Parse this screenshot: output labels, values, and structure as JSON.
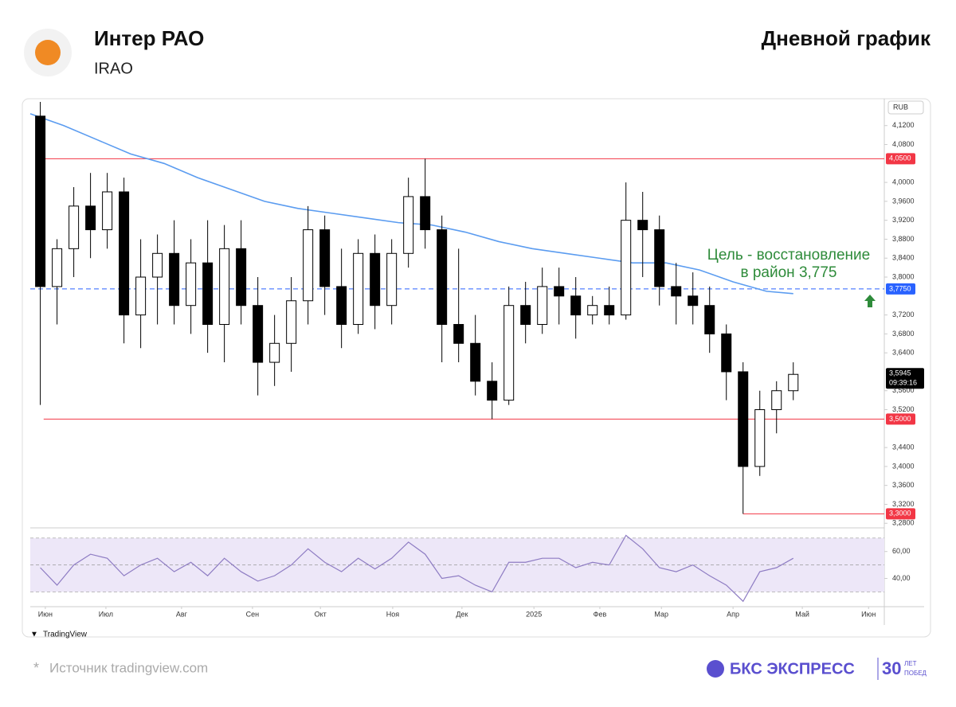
{
  "header": {
    "title": "Интер РАО",
    "ticker": "IRAO",
    "chart_kind": "Дневной график"
  },
  "footer": {
    "source": "Источник tradingview.com",
    "star": "*",
    "brand": "БКС ЭКСПРЕСС",
    "anniv_num": "30",
    "anniv_top": "ЛЕТ",
    "anniv_bottom": "ПОБЕД",
    "tv": "TradingView"
  },
  "chart_data": {
    "type": "candlestick",
    "currency": "RUB",
    "xlim": [
      0,
      255.2
    ],
    "xticks": [
      {
        "value": 4.5,
        "label": "Июн"
      },
      {
        "value": 22.6,
        "label": "Июл"
      },
      {
        "value": 45.2,
        "label": "Авг"
      },
      {
        "value": 66.4,
        "label": "Сен"
      },
      {
        "value": 86.7,
        "label": "Окт"
      },
      {
        "value": 108.3,
        "label": "Ноя"
      },
      {
        "value": 129,
        "label": "Дек"
      },
      {
        "value": 150.5,
        "label": "2025"
      },
      {
        "value": 170.2,
        "label": "Фев"
      },
      {
        "value": 188.6,
        "label": "Мар"
      },
      {
        "value": 210,
        "label": "Апр"
      },
      {
        "value": 230.7,
        "label": "Май"
      },
      {
        "value": 250.5,
        "label": "Июн"
      }
    ],
    "ylim": [
      3.272,
      4.17
    ],
    "yticks": [
      {
        "value": 4.12,
        "label": "4,1200"
      },
      {
        "value": 4.08,
        "label": "4,0800"
      },
      {
        "value": 4.0,
        "label": "4,0000"
      },
      {
        "value": 3.96,
        "label": "3,9600"
      },
      {
        "value": 3.92,
        "label": "3,9200"
      },
      {
        "value": 3.88,
        "label": "3,8800"
      },
      {
        "value": 3.84,
        "label": "3,8400"
      },
      {
        "value": 3.8,
        "label": "3,8000"
      },
      {
        "value": 3.72,
        "label": "3,7200"
      },
      {
        "value": 3.68,
        "label": "3,6800"
      },
      {
        "value": 3.64,
        "label": "3,6400"
      },
      {
        "value": 3.56,
        "label": "3,5600"
      },
      {
        "value": 3.52,
        "label": "3,5200"
      },
      {
        "value": 3.44,
        "label": "3,4400"
      },
      {
        "value": 3.4,
        "label": "3,4000"
      },
      {
        "value": 3.36,
        "label": "3,3600"
      },
      {
        "value": 3.32,
        "label": "3,3200"
      },
      {
        "value": 3.28,
        "label": "3,2800"
      }
    ],
    "x": [
      3,
      8,
      13,
      18,
      23,
      28,
      33,
      38,
      43,
      48,
      53,
      58,
      63,
      68,
      73,
      78,
      83,
      88,
      93,
      98,
      103,
      108,
      113,
      118,
      123,
      128,
      133,
      138,
      143,
      148,
      153,
      158,
      163,
      168,
      173,
      178,
      183,
      188,
      193,
      198,
      203,
      208,
      213,
      218,
      223,
      228
    ],
    "open": [
      4.14,
      3.78,
      3.86,
      3.95,
      3.9,
      3.98,
      3.72,
      3.8,
      3.85,
      3.74,
      3.83,
      3.7,
      3.86,
      3.74,
      3.62,
      3.66,
      3.75,
      3.9,
      3.78,
      3.7,
      3.85,
      3.74,
      3.85,
      3.97,
      3.9,
      3.7,
      3.66,
      3.58,
      3.54,
      3.74,
      3.7,
      3.78,
      3.76,
      3.72,
      3.74,
      3.72,
      3.92,
      3.9,
      3.78,
      3.76,
      3.74,
      3.68,
      3.6,
      3.4,
      3.52,
      3.56
    ],
    "high": [
      4.17,
      3.88,
      3.99,
      4.02,
      4.02,
      4.01,
      3.88,
      3.89,
      3.92,
      3.88,
      3.92,
      3.91,
      3.92,
      3.8,
      3.72,
      3.8,
      3.95,
      3.93,
      3.86,
      3.88,
      3.89,
      3.88,
      4.01,
      4.05,
      3.93,
      3.86,
      3.72,
      3.62,
      3.78,
      3.79,
      3.82,
      3.82,
      3.8,
      3.76,
      3.78,
      4.0,
      3.98,
      3.93,
      3.83,
      3.81,
      3.78,
      3.7,
      3.62,
      3.56,
      3.58,
      3.62
    ],
    "low": [
      3.53,
      3.7,
      3.8,
      3.84,
      3.86,
      3.66,
      3.65,
      3.7,
      3.7,
      3.68,
      3.64,
      3.62,
      3.7,
      3.55,
      3.57,
      3.6,
      3.7,
      3.72,
      3.65,
      3.68,
      3.69,
      3.7,
      3.82,
      3.86,
      3.62,
      3.62,
      3.55,
      3.5,
      3.53,
      3.66,
      3.68,
      3.7,
      3.67,
      3.7,
      3.7,
      3.71,
      3.8,
      3.74,
      3.7,
      3.7,
      3.64,
      3.54,
      3.3,
      3.38,
      3.47,
      3.54
    ],
    "close": [
      3.78,
      3.86,
      3.95,
      3.9,
      3.98,
      3.72,
      3.8,
      3.85,
      3.74,
      3.83,
      3.7,
      3.86,
      3.74,
      3.62,
      3.66,
      3.75,
      3.9,
      3.78,
      3.7,
      3.85,
      3.74,
      3.85,
      3.97,
      3.9,
      3.7,
      3.66,
      3.58,
      3.54,
      3.74,
      3.7,
      3.78,
      3.76,
      3.72,
      3.74,
      3.72,
      3.92,
      3.9,
      3.78,
      3.76,
      3.74,
      3.68,
      3.6,
      3.4,
      3.52,
      3.56,
      3.5945
    ],
    "up_color": "#ffffff",
    "down_color": "#000000",
    "ma": {
      "color": "#5b9cf0",
      "x": [
        0,
        10,
        20,
        30,
        40,
        50,
        60,
        70,
        80,
        90,
        100,
        110,
        120,
        130,
        140,
        150,
        160,
        170,
        180,
        190,
        200,
        210,
        220,
        228
      ],
      "values": [
        4.145,
        4.12,
        4.09,
        4.06,
        4.04,
        4.01,
        3.985,
        3.96,
        3.945,
        3.935,
        3.925,
        3.915,
        3.91,
        3.895,
        3.875,
        3.86,
        3.85,
        3.84,
        3.83,
        3.83,
        3.815,
        3.79,
        3.77,
        3.765
      ]
    },
    "levels": [
      {
        "value": 4.05,
        "label": "4,0500",
        "color": "#f23645",
        "from": 4
      },
      {
        "value": 3.5,
        "label": "3,5000",
        "color": "#f23645",
        "from": 4
      },
      {
        "value": 3.3,
        "label": "3,3000",
        "color": "#f23645",
        "from": 213
      },
      {
        "value": 3.775,
        "label": "3,7750",
        "color": "#2962ff",
        "from": 0,
        "dashed": true
      }
    ],
    "last_price": {
      "value": 3.5945,
      "label": "3,5945",
      "time": "09:39:16"
    },
    "annotation": {
      "lines": [
        "Цель - восстановление",
        "в район 3,775"
      ],
      "color": "#2e8b3a"
    },
    "rsi": {
      "color": "#8e7cc3",
      "ylim": [
        19,
        77
      ],
      "yticks": [
        {
          "value": 60,
          "label": "60,00"
        },
        {
          "value": 40,
          "label": "40,00"
        }
      ],
      "bands": [
        70,
        50,
        30
      ],
      "values": [
        48,
        35,
        50,
        58,
        55,
        42,
        50,
        55,
        45,
        52,
        42,
        55,
        45,
        38,
        42,
        50,
        62,
        52,
        45,
        55,
        47,
        55,
        67,
        58,
        40,
        42,
        35,
        30,
        52,
        52,
        55,
        55,
        48,
        52,
        50,
        72,
        62,
        48,
        45,
        50,
        42,
        35,
        23,
        45,
        48,
        55
      ]
    }
  }
}
